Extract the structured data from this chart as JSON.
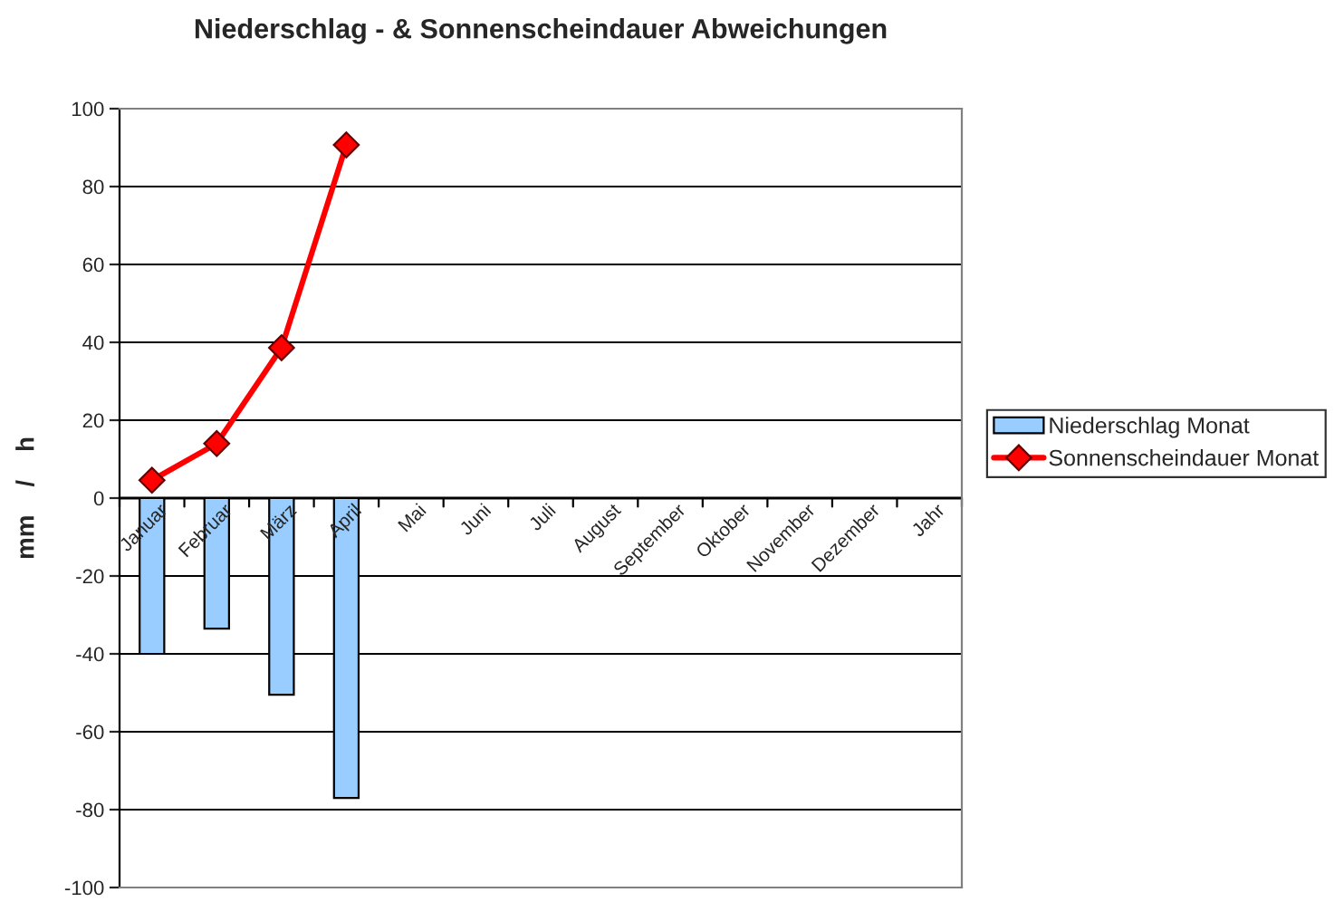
{
  "chart_data": {
    "type": "bar",
    "title": "Niederschlag - & Sonnenscheindauer Abweichungen",
    "ylabel": "mm    /    h",
    "categories": [
      "Januar",
      "Februar",
      "März",
      "April",
      "Mai",
      "Juni",
      "Juli",
      "August",
      "September",
      "Oktober",
      "November",
      "Dezember",
      "Jahr"
    ],
    "series": [
      {
        "name": "Niederschlag Monat",
        "color": "#99ccff",
        "values": [
          -40,
          -33.5,
          -50.5,
          -77,
          null,
          null,
          null,
          null,
          null,
          null,
          null,
          null,
          null
        ]
      },
      {
        "name": "Sonnenscheindauer Monat",
        "type": "line",
        "color": "#ff0000",
        "marker": "diamond",
        "values": [
          4.6,
          14,
          38.6,
          90.7,
          null,
          null,
          null,
          null,
          null,
          null,
          null,
          null,
          null
        ]
      }
    ],
    "ylim": [
      -100,
      100
    ],
    "yticks": [
      -100,
      -80,
      -60,
      -40,
      -20,
      0,
      20,
      40,
      60,
      80,
      100
    ],
    "grid": "y",
    "legend": "right"
  }
}
